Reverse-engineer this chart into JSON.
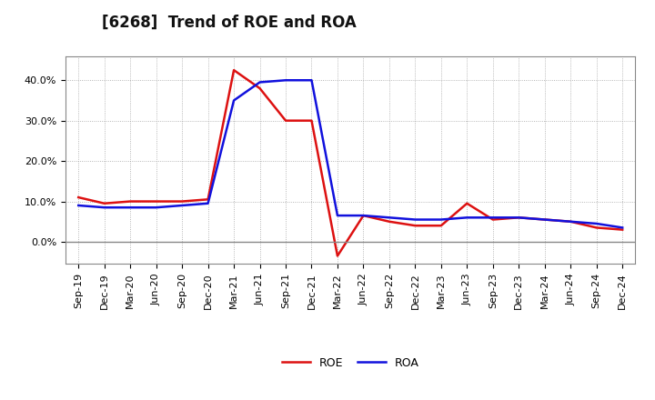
{
  "title": "[6268]  Trend of ROE and ROA",
  "x_labels": [
    "Sep-19",
    "Dec-19",
    "Mar-20",
    "Jun-20",
    "Sep-20",
    "Dec-20",
    "Mar-21",
    "Jun-21",
    "Sep-21",
    "Dec-21",
    "Mar-22",
    "Jun-22",
    "Sep-22",
    "Dec-22",
    "Mar-23",
    "Jun-23",
    "Sep-23",
    "Dec-23",
    "Mar-24",
    "Jun-24",
    "Sep-24",
    "Dec-24"
  ],
  "roe": [
    11.0,
    9.5,
    10.0,
    10.0,
    10.0,
    10.5,
    42.5,
    38.0,
    30.0,
    30.0,
    -3.5,
    6.5,
    5.0,
    4.0,
    4.0,
    9.5,
    5.5,
    6.0,
    5.5,
    5.0,
    3.5,
    3.0
  ],
  "roa": [
    9.0,
    8.5,
    8.5,
    8.5,
    9.0,
    9.5,
    35.0,
    39.5,
    40.0,
    40.0,
    6.5,
    6.5,
    6.0,
    5.5,
    5.5,
    6.0,
    6.0,
    6.0,
    5.5,
    5.0,
    4.5,
    3.5
  ],
  "roe_color": "#dd1111",
  "roa_color": "#1111dd",
  "background_color": "#ffffff",
  "plot_bg_color": "#ffffff",
  "grid_color": "#999999",
  "ylim": [
    -5.5,
    46.0
  ],
  "yticks": [
    0.0,
    10.0,
    20.0,
    30.0,
    40.0
  ],
  "line_width": 1.8,
  "title_fontsize": 12,
  "tick_fontsize": 8,
  "legend_fontsize": 9
}
